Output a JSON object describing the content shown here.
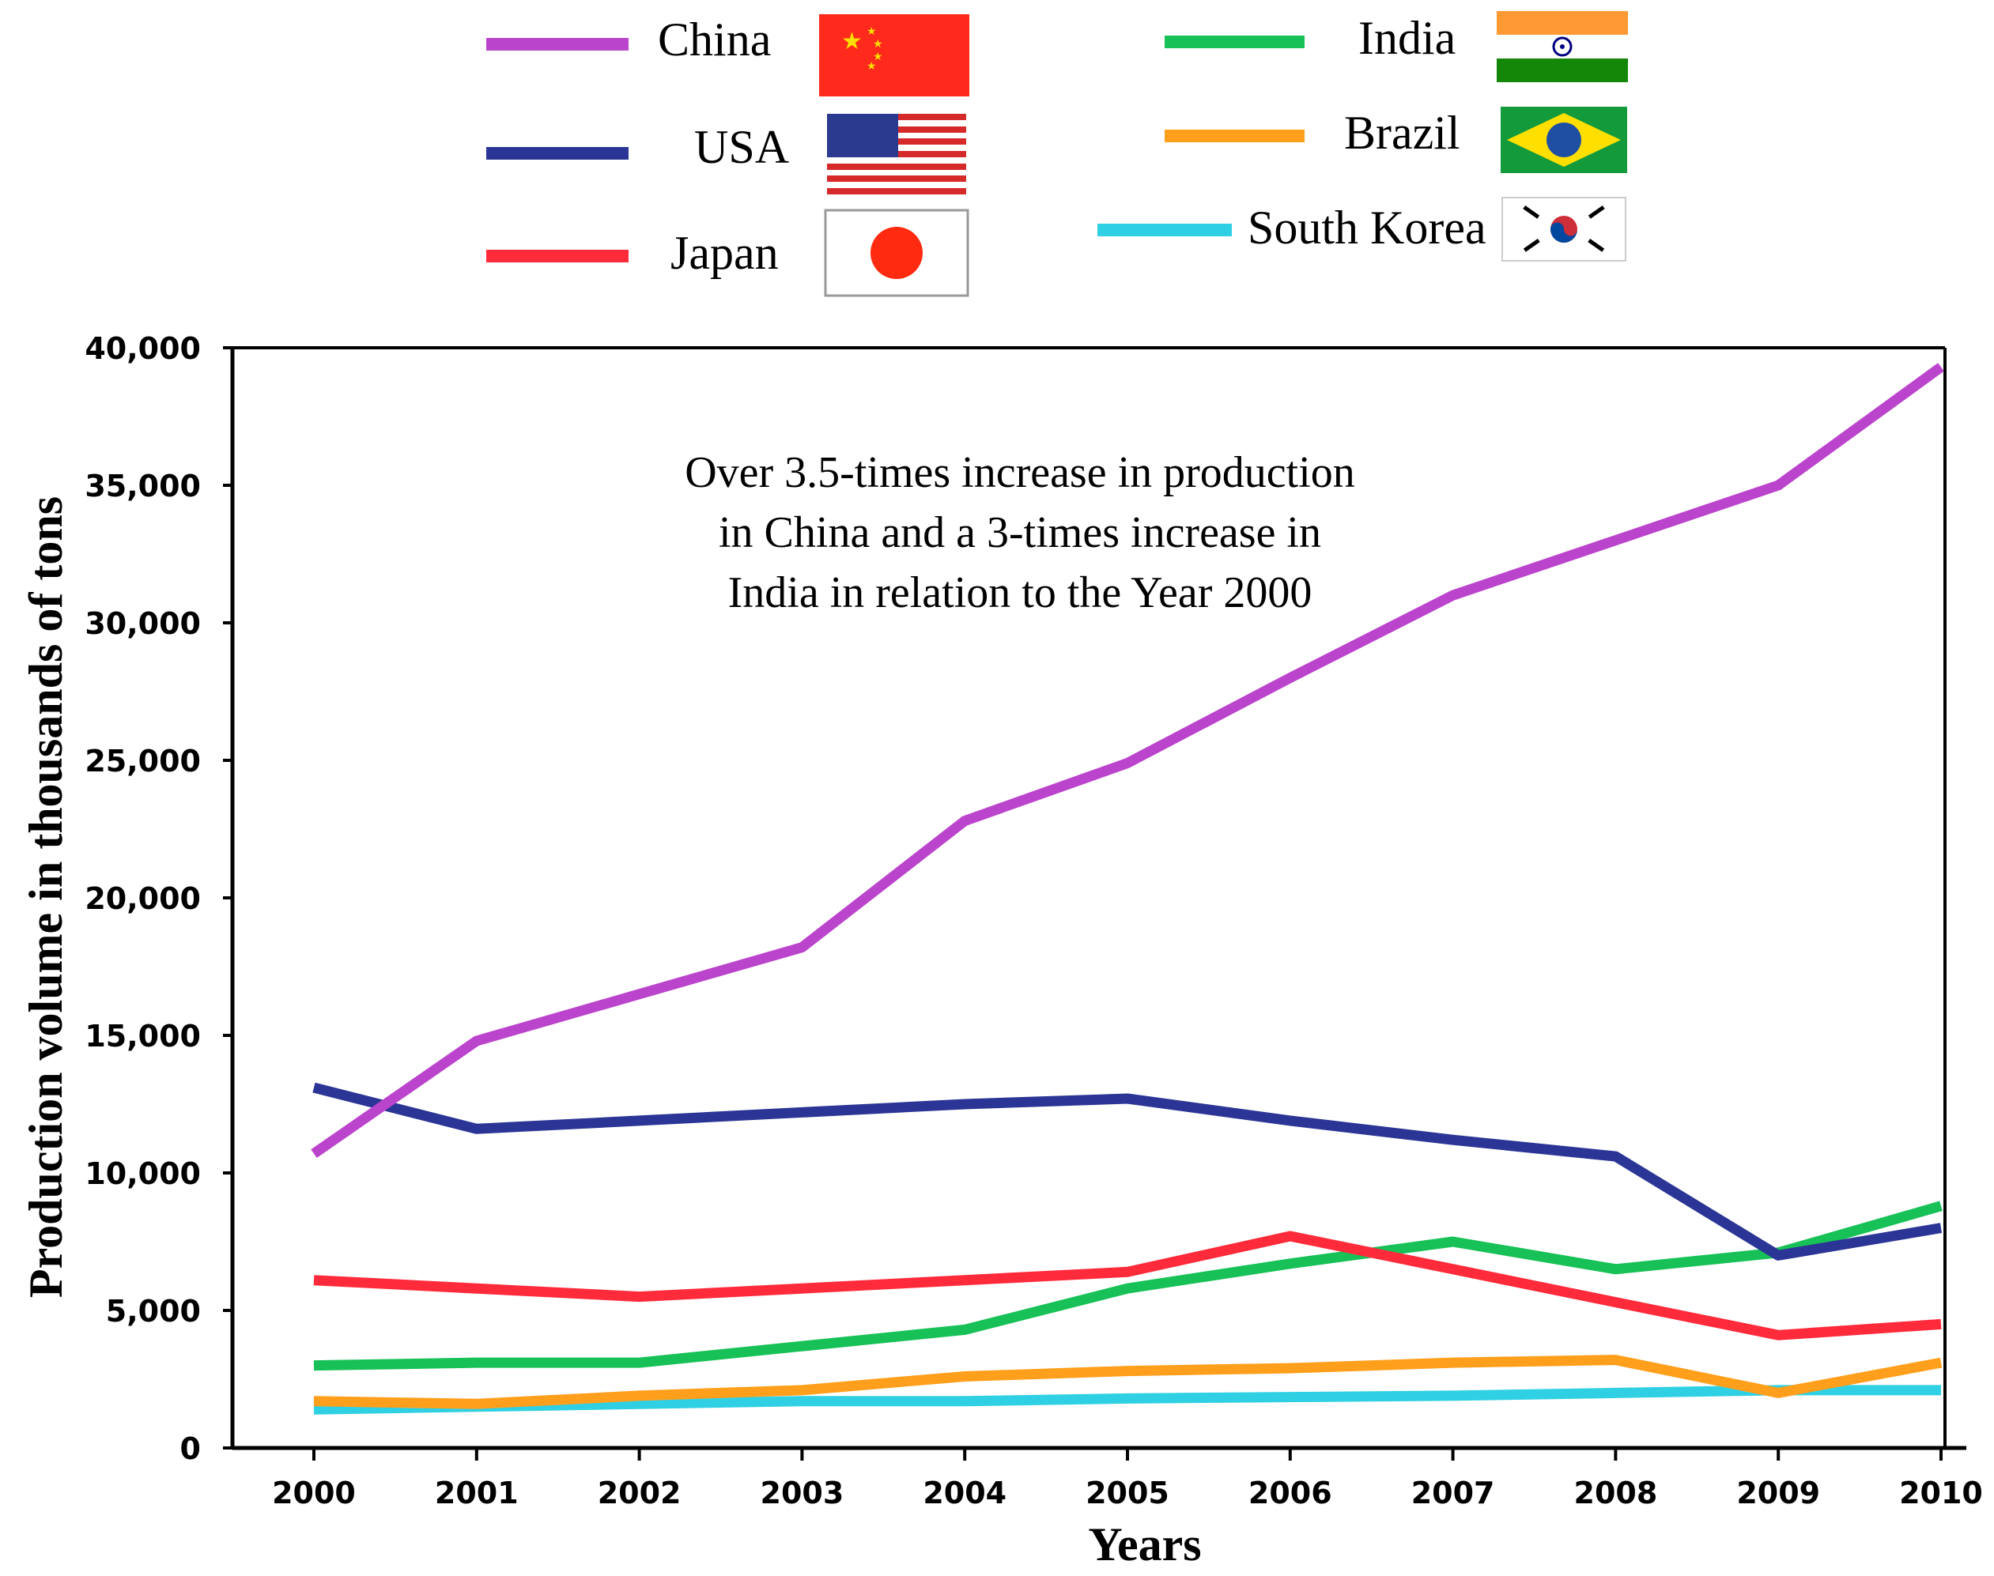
{
  "chart_data": {
    "type": "line",
    "title": "",
    "xlabel": "Years",
    "ylabel": "Production volume in thousands of tons",
    "annotation": [
      "Over 3.5-times increase in production",
      "in China and a 3-times increase in",
      "India in relation to the Year 2000"
    ],
    "x": [
      "2000",
      "2001",
      "2002",
      "2003",
      "2004",
      "2005",
      "2006",
      "2007",
      "2008",
      "2009",
      "2010"
    ],
    "x_tick_labels": [
      "2000",
      "2001",
      "2002",
      "2003",
      "2004",
      "2005",
      "2006",
      "2007",
      "2008",
      "2009",
      "2010"
    ],
    "y_tick_labels": [
      "0",
      "5,000",
      "10,000",
      "15,000",
      "20,000",
      "25,000",
      "30,000",
      "35,000",
      "40,000"
    ],
    "y_ticks": [
      0,
      5000,
      10000,
      15000,
      20000,
      25000,
      30000,
      35000,
      40000
    ],
    "ylim": [
      0,
      40000
    ],
    "grid": false,
    "legend_position": "top",
    "series": [
      {
        "name": "China",
        "color": "#bb44cc",
        "flag": "china-flag",
        "values": [
          10700,
          14800,
          16500,
          18200,
          22800,
          24900,
          28000,
          31000,
          33000,
          35000,
          39300
        ]
      },
      {
        "name": "USA",
        "color": "#2b3595",
        "flag": "usa-flag",
        "values": [
          13100,
          11600,
          11900,
          12200,
          12500,
          12700,
          11900,
          11200,
          10600,
          7000,
          8000
        ]
      },
      {
        "name": "Japan",
        "color": "#ff2a3a",
        "flag": "japan-flag",
        "values": [
          6100,
          5800,
          5500,
          5800,
          6100,
          6400,
          7700,
          6500,
          5300,
          4100,
          4500
        ]
      },
      {
        "name": "India",
        "color": "#17c157",
        "flag": "india-flag",
        "values": [
          3000,
          3100,
          3100,
          3700,
          4300,
          5800,
          6700,
          7500,
          6500,
          7100,
          8800
        ]
      },
      {
        "name": "Brazil",
        "color": "#ff9f1c",
        "flag": "brazil-flag",
        "values": [
          1700,
          1600,
          1900,
          2100,
          2600,
          2800,
          2900,
          3100,
          3200,
          2000,
          3100
        ]
      },
      {
        "name": "South Korea",
        "color": "#2fd0e4",
        "flag": "south-korea-flag",
        "values": [
          1400,
          1500,
          1600,
          1700,
          1700,
          1800,
          1850,
          1900,
          2000,
          2100,
          2100
        ]
      }
    ]
  }
}
